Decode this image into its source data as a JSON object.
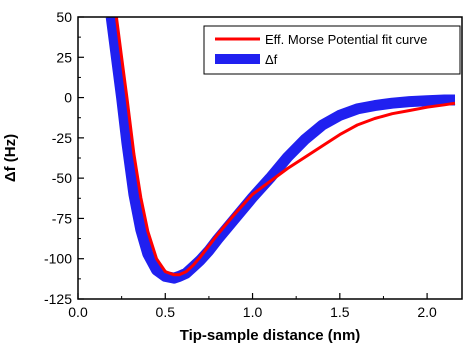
{
  "chart_data": {
    "type": "line",
    "title": "",
    "xlabel": "Tip-sample distance (nm)",
    "ylabel": "Δf (Hz)",
    "xlim": [
      0.0,
      2.2
    ],
    "ylim": [
      -125,
      50
    ],
    "xticks": [
      0.0,
      0.5,
      1.0,
      1.5,
      2.0
    ],
    "xtick_labels": [
      "0.0",
      "0.5",
      "1.0",
      "1.5",
      "2.0"
    ],
    "yticks": [
      50,
      25,
      0,
      -25,
      -50,
      -75,
      -100,
      -125
    ],
    "ytick_labels": [
      "50",
      "25",
      "0",
      "-25",
      "-50",
      "-75",
      "-100",
      "-125"
    ],
    "grid": false,
    "legend_position": "top-right",
    "series": [
      {
        "name": "Eff. Morse Potential fit curve",
        "color": "#ff0000",
        "style": "thin-line",
        "x": [
          0.22,
          0.25,
          0.28,
          0.32,
          0.36,
          0.4,
          0.45,
          0.5,
          0.55,
          0.58,
          0.62,
          0.66,
          0.7,
          0.75,
          0.8,
          0.9,
          1.0,
          1.1,
          1.2,
          1.3,
          1.4,
          1.5,
          1.6,
          1.7,
          1.8,
          1.9,
          2.0,
          2.1,
          2.16
        ],
        "y": [
          50,
          25,
          0,
          -35,
          -62,
          -83,
          -100,
          -108,
          -110,
          -110,
          -108,
          -104,
          -99,
          -92,
          -85,
          -72,
          -60,
          -52,
          -44,
          -37,
          -30,
          -23,
          -17,
          -13,
          -10,
          -8,
          -6,
          -4.5,
          -3.5
        ]
      },
      {
        "name": "Δf",
        "color": "#2020f0",
        "style": "thick-band",
        "x": [
          0.19,
          0.22,
          0.25,
          0.28,
          0.32,
          0.36,
          0.4,
          0.45,
          0.5,
          0.55,
          0.58,
          0.62,
          0.66,
          0.7,
          0.75,
          0.8,
          0.9,
          1.0,
          1.1,
          1.2,
          1.3,
          1.4,
          1.5,
          1.6,
          1.7,
          1.8,
          1.9,
          2.0,
          2.1,
          2.16
        ],
        "y": [
          50,
          25,
          0,
          -28,
          -60,
          -82,
          -97,
          -107,
          -111,
          -112,
          -111,
          -109,
          -105,
          -101,
          -95,
          -88,
          -75,
          -62,
          -50,
          -37,
          -26,
          -17,
          -11,
          -7,
          -5,
          -3.5,
          -2.5,
          -2,
          -1.5,
          -1.5
        ]
      }
    ]
  }
}
